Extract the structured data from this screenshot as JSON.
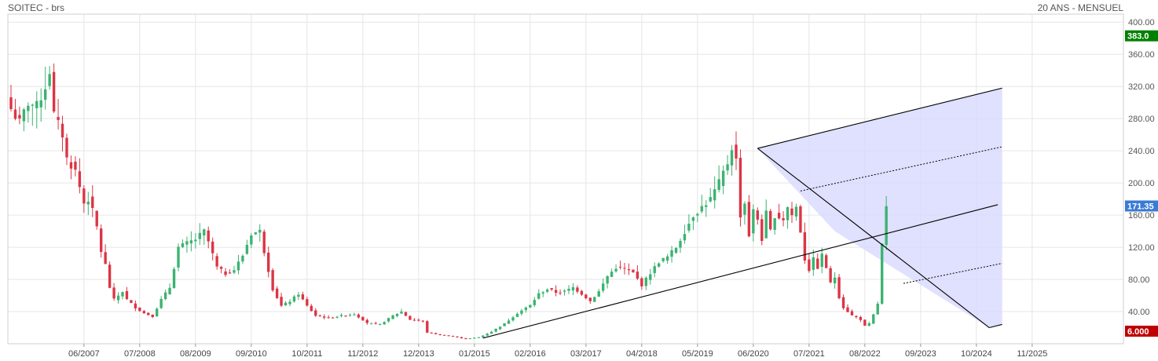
{
  "header": {
    "instrument": "SOITEC - brs",
    "period": "20 ANS - MENSUEL"
  },
  "chart_data": {
    "type": "candlestick",
    "ylim": [
      0,
      410
    ],
    "y_ticks": [
      40,
      80,
      120,
      160,
      200,
      240,
      280,
      320,
      360,
      400
    ],
    "y_tick_labels": [
      "40.00",
      "80.00",
      "120.00",
      "160.00",
      "200.00",
      "240.00",
      "280.00",
      "320.00",
      "360.00",
      "400.00"
    ],
    "x_tick_labels": [
      "06/2007",
      "07/2008",
      "08/2009",
      "09/2010",
      "10/2011",
      "11/2012",
      "12/2013",
      "01/2015",
      "02/2016",
      "03/2017",
      "04/2018",
      "05/2019",
      "06/2020",
      "07/2021",
      "08/2022",
      "09/2023",
      "10/2024",
      "11/2025"
    ],
    "x_tick_index": [
      17,
      30,
      43,
      56,
      69,
      82,
      95,
      108,
      121,
      134,
      147,
      160,
      173,
      186,
      199,
      212,
      225,
      238
    ],
    "price_tags": [
      {
        "label": "383.0",
        "value": 383,
        "color": "#008000"
      },
      {
        "label": "171.35",
        "value": 171.35,
        "color": "#3a7bd5"
      },
      {
        "label": "6.000",
        "value": 6,
        "color": "#c00000"
      }
    ],
    "colors": {
      "up": "#3cb371",
      "down": "#dc3545",
      "channel_fill": "#d8d8ff",
      "grid": "#e6e6e6"
    },
    "anchors": [
      [
        0,
        292
      ],
      [
        2,
        275
      ],
      [
        4,
        300
      ],
      [
        6,
        295
      ],
      [
        8,
        320
      ],
      [
        9,
        340
      ],
      [
        10,
        285
      ],
      [
        12,
        260
      ],
      [
        13,
        230
      ],
      [
        15,
        215
      ],
      [
        17,
        175
      ],
      [
        18,
        180
      ],
      [
        19,
        165
      ],
      [
        20,
        145
      ],
      [
        21,
        115
      ],
      [
        22,
        98
      ],
      [
        23,
        70
      ],
      [
        24,
        55
      ],
      [
        26,
        65
      ],
      [
        27,
        55
      ],
      [
        29,
        45
      ],
      [
        31,
        38
      ],
      [
        33,
        34
      ],
      [
        35,
        55
      ],
      [
        37,
        70
      ],
      [
        39,
        120
      ],
      [
        41,
        125
      ],
      [
        43,
        130
      ],
      [
        45,
        140
      ],
      [
        46,
        127
      ],
      [
        48,
        95
      ],
      [
        50,
        87
      ],
      [
        52,
        92
      ],
      [
        54,
        110
      ],
      [
        56,
        137
      ],
      [
        58,
        140
      ],
      [
        59,
        115
      ],
      [
        61,
        68
      ],
      [
        63,
        47
      ],
      [
        65,
        53
      ],
      [
        67,
        62
      ],
      [
        69,
        47
      ],
      [
        71,
        35
      ],
      [
        74,
        32
      ],
      [
        77,
        35
      ],
      [
        80,
        37
      ],
      [
        83,
        26
      ],
      [
        86,
        24
      ],
      [
        89,
        35
      ],
      [
        91,
        40
      ],
      [
        93,
        30
      ],
      [
        96,
        28
      ],
      [
        97,
        14
      ],
      [
        100,
        11
      ],
      [
        103,
        9
      ],
      [
        106,
        6
      ],
      [
        109,
        8
      ],
      [
        112,
        15
      ],
      [
        115,
        25
      ],
      [
        118,
        38
      ],
      [
        121,
        48
      ],
      [
        123,
        62
      ],
      [
        125,
        68
      ],
      [
        127,
        64
      ],
      [
        129,
        65
      ],
      [
        131,
        70
      ],
      [
        133,
        62
      ],
      [
        135,
        53
      ],
      [
        137,
        65
      ],
      [
        139,
        84
      ],
      [
        141,
        95
      ],
      [
        143,
        93
      ],
      [
        145,
        88
      ],
      [
        147,
        73
      ],
      [
        149,
        88
      ],
      [
        151,
        102
      ],
      [
        153,
        108
      ],
      [
        155,
        120
      ],
      [
        157,
        140
      ],
      [
        159,
        160
      ],
      [
        161,
        170
      ],
      [
        163,
        180
      ],
      [
        165,
        200
      ],
      [
        167,
        225
      ],
      [
        168,
        245
      ],
      [
        169,
        228
      ],
      [
        170,
        160
      ],
      [
        171,
        175
      ],
      [
        172,
        135
      ],
      [
        173,
        165
      ],
      [
        174,
        155
      ],
      [
        175,
        130
      ],
      [
        176,
        162
      ],
      [
        177,
        140
      ],
      [
        178,
        160
      ],
      [
        180,
        155
      ],
      [
        181,
        170
      ],
      [
        182,
        160
      ],
      [
        183,
        170
      ],
      [
        184,
        140
      ],
      [
        185,
        105
      ],
      [
        186,
        92
      ],
      [
        187,
        105
      ],
      [
        188,
        95
      ],
      [
        189,
        110
      ],
      [
        190,
        95
      ],
      [
        191,
        75
      ],
      [
        192,
        83
      ],
      [
        193,
        58
      ],
      [
        194,
        45
      ],
      [
        195,
        40
      ],
      [
        196,
        35
      ],
      [
        197,
        33
      ],
      [
        198,
        30
      ],
      [
        199,
        22
      ],
      [
        200,
        25
      ],
      [
        201,
        36
      ],
      [
        202,
        50
      ],
      [
        203,
        123
      ],
      [
        204,
        168
      ]
    ],
    "drawings": [
      {
        "kind": "trendline",
        "from": [
          110,
          7
        ],
        "to": [
          230,
          173
        ]
      },
      {
        "kind": "trendline",
        "from": [
          174,
          243
        ],
        "to": [
          231,
          318
        ]
      },
      {
        "kind": "trendline",
        "from": [
          174,
          243
        ],
        "to": [
          228,
          20
        ]
      },
      {
        "kind": "trendline",
        "from": [
          228,
          20
        ],
        "to": [
          231,
          24
        ]
      },
      {
        "kind": "dotted",
        "from": [
          184,
          190
        ],
        "to": [
          231,
          245
        ]
      },
      {
        "kind": "dotted",
        "from": [
          208,
          75
        ],
        "to": [
          231,
          100
        ]
      }
    ]
  }
}
